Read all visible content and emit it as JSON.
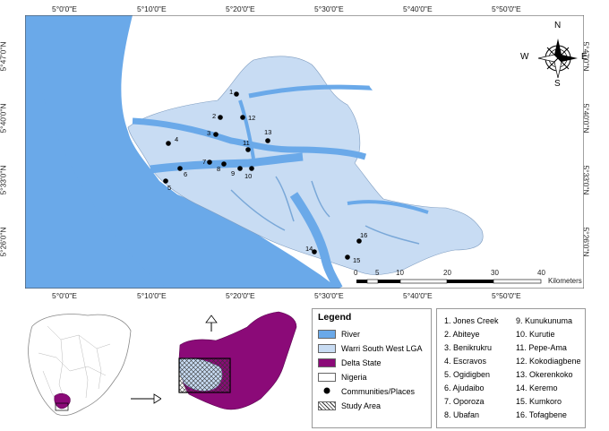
{
  "map": {
    "lon_ticks": [
      "5°0'0\"E",
      "5°10'0\"E",
      "5°20'0\"E",
      "5°30'0\"E",
      "5°40'0\"E",
      "5°50'0\"E"
    ],
    "lat_ticks": [
      "5°47'0\"N",
      "5°40'0\"N",
      "5°33'0\"N",
      "5°26'0\"N"
    ],
    "compass": {
      "n": "N",
      "s": "S",
      "e": "E",
      "w": "W"
    },
    "scale": {
      "labels": [
        "0",
        "5",
        "10",
        "20",
        "30",
        "40"
      ],
      "unit": "Kilometers"
    },
    "point_labels": [
      "1",
      "2",
      "3",
      "4",
      "5",
      "6",
      "7",
      "8",
      "9",
      "10",
      "11",
      "12",
      "13",
      "14",
      "15",
      "16"
    ]
  },
  "legend": {
    "title": "Legend",
    "items": [
      {
        "label": "River",
        "color": "#6aa9e9"
      },
      {
        "label": "Warri South West LGA",
        "color": "#c8dcf3"
      },
      {
        "label": "Delta State",
        "color": "#8b0a78"
      },
      {
        "label": "Nigeria",
        "color": "#ffffff"
      },
      {
        "label": "Communities/Places",
        "color": "#000000"
      },
      {
        "label": "Study Area",
        "color": "hatched"
      }
    ]
  },
  "communities": [
    "1. Jones Creek",
    "2. Abiteye",
    "3. Benikrukru",
    "4. Escravos",
    "5. Ogidigben",
    "6. Ajudaibo",
    "7. Oporoza",
    "8. Ubafan",
    "9. Kunukunuma",
    "10. Kurutie",
    "11. Pepe-Ama",
    "12. Kokodiagbene",
    "13. Okerenkoko",
    "14. Keremo",
    "15. Kumkoro",
    "16. Tofagbene"
  ]
}
